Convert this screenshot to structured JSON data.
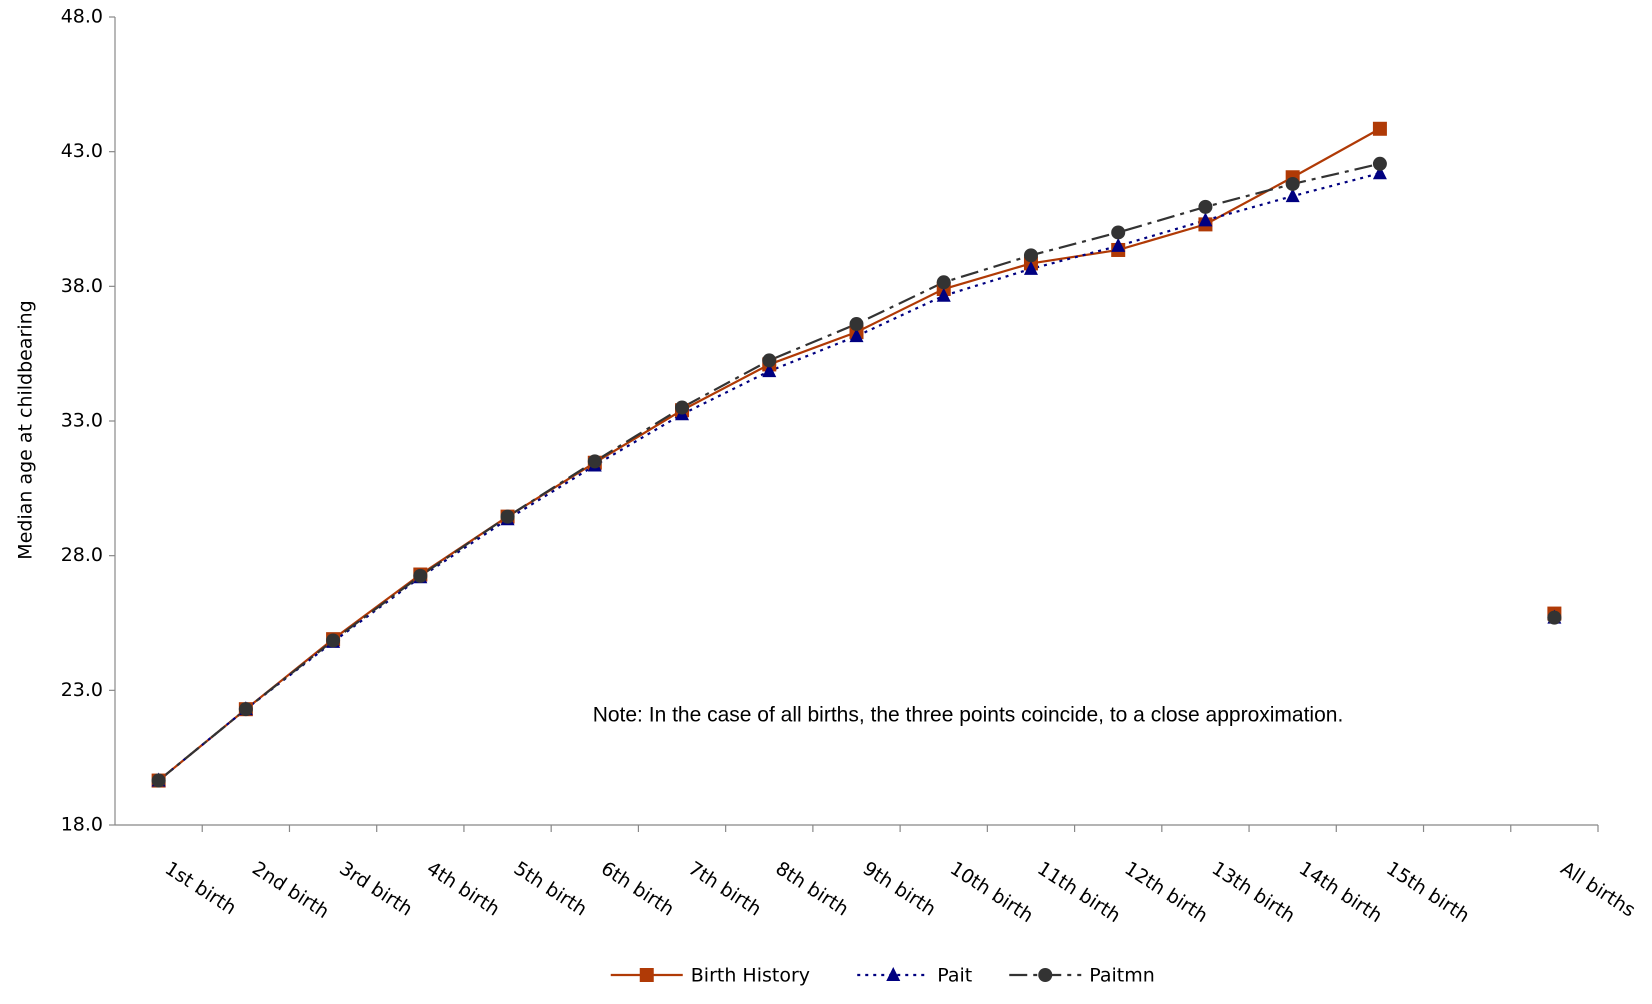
{
  "chart_data": {
    "type": "line",
    "ylabel": "Median age at childbearing",
    "annotation": "Note: In the case of all births, the three points coincide, to a close approximation.",
    "categories": [
      "1st birth",
      "2nd birth",
      "3rd birth",
      "4th birth",
      "5th birth",
      "6th birth",
      "7th birth",
      "8th birth",
      "9th birth",
      "10th birth",
      "11th birth",
      "12th birth",
      "13th birth",
      "14th birth",
      "15th birth",
      null,
      "All births"
    ],
    "series": [
      {
        "name": "Birth History",
        "color": "#b03a06",
        "dash": "solid",
        "marker": "square",
        "values": [
          19.65,
          22.3,
          24.9,
          27.3,
          29.45,
          31.45,
          33.4,
          35.1,
          36.3,
          37.9,
          38.85,
          39.35,
          40.3,
          42.05,
          43.85,
          null,
          25.85
        ]
      },
      {
        "name": "Pait",
        "color": "#000080",
        "dash": "dotted",
        "marker": "triangle",
        "values": [
          19.65,
          22.3,
          24.8,
          27.2,
          29.35,
          31.35,
          33.25,
          34.85,
          36.15,
          37.65,
          38.65,
          39.5,
          40.45,
          41.35,
          42.2,
          null,
          25.7
        ]
      },
      {
        "name": "Paitmn",
        "color": "#333333",
        "dash": "dashdot",
        "marker": "circle",
        "values": [
          19.65,
          22.3,
          24.85,
          27.25,
          29.45,
          31.5,
          33.5,
          35.25,
          36.6,
          38.15,
          39.15,
          40.0,
          40.95,
          41.8,
          42.55,
          null,
          25.7
        ]
      }
    ],
    "ylim": [
      18,
      48
    ],
    "yticks": [
      {
        "value": 18,
        "label": "18.0"
      },
      {
        "value": 23,
        "label": "23.0"
      },
      {
        "value": 28,
        "label": "28.0"
      },
      {
        "value": 33,
        "label": "33.0"
      },
      {
        "value": 38,
        "label": "38.0"
      },
      {
        "value": 43,
        "label": "43.0"
      },
      {
        "value": 48,
        "label": "48.0"
      }
    ],
    "legend": "bottom"
  }
}
